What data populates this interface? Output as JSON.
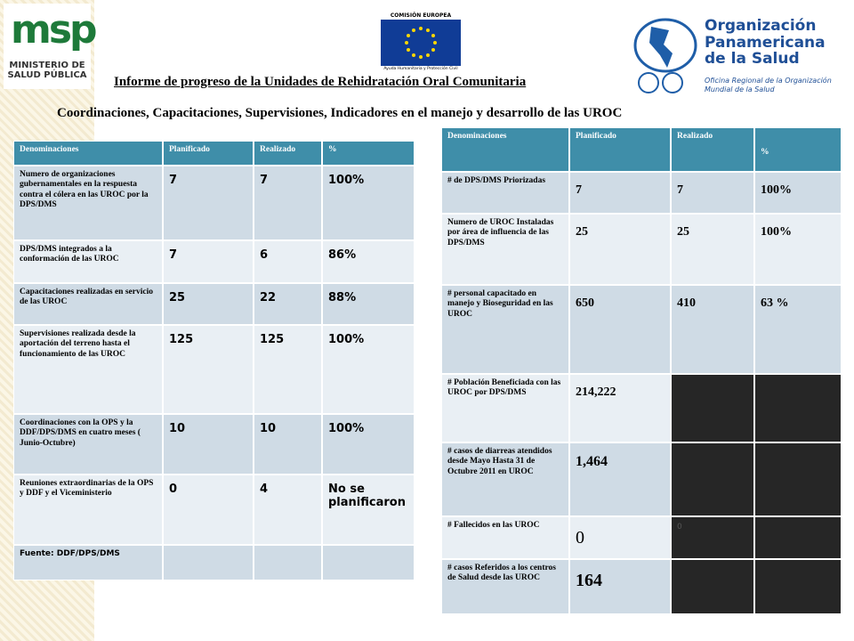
{
  "header": {
    "msp_logo": "msp",
    "msp_name": "MINISTERIO DE SALUD PÚBLICA",
    "eu_name": "COMISIÓN EUROPEA",
    "eu_subtitle": "Ayuda Humanitaria y Protección Civil",
    "ops_name": "Organización Panamericana de la Salud",
    "ops_subtitle": "Oficina Regional de la Organización Mundial de la Salud"
  },
  "title": "Informe de progreso de la Unidades de Rehidratación Oral Comunitaria",
  "subtitle": "Coordinaciones, Capacitaciones, Supervisiones, Indicadores en el manejo y desarrollo de las UROC",
  "table_left": {
    "header": [
      "Denominaciones",
      "Planificado",
      "Realizado",
      "%"
    ],
    "rows": [
      [
        "Numero de organizaciones gubernamentales en la respuesta contra el cólera en las UROC por la DPS/DMS",
        "7",
        "7",
        "100%"
      ],
      [
        "DPS/DMS integrados a la conformación de las UROC",
        "7",
        "6",
        "86%"
      ],
      [
        "Capacitaciones realizadas en servicio de las UROC",
        "25",
        "22",
        "88%"
      ],
      [
        "Supervisiones realizada desde la aportación del terreno hasta el funcionamiento de las UROC",
        "125",
        "125",
        "100%"
      ],
      [
        "Coordinaciones con la OPS y la DDF/DPS/DMS en cuatro meses ( Junio-Octubre)",
        "10",
        "10",
        "100%"
      ],
      [
        "Reuniones extraordinarias de la OPS y DDF y el Viceministerio",
        "0",
        "4",
        "No se planificaron"
      ]
    ],
    "source": "Fuente: DDF/DPS/DMS"
  },
  "table_right": {
    "header": [
      "Denominaciones",
      "Planificado",
      "Realizado",
      "%"
    ],
    "rows": [
      [
        "# de DPS/DMS Priorizadas",
        "7",
        "7",
        "100%"
      ],
      [
        "Numero de UROC Instaladas por área de influencia de las DPS/DMS",
        "25",
        "25",
        "100%"
      ],
      [
        "# personal capacitado en manejo y Bioseguridad en las UROC",
        "650",
        "410",
        "63 %"
      ],
      [
        "# Población Beneficiada con las UROC por DPS/DMS",
        "214,222",
        null,
        null
      ],
      [
        "# casos de diarreas atendidos desde Mayo Hasta 31 de Octubre 2011 en UROC",
        "1,464",
        null,
        null
      ],
      [
        "# Fallecidos en las UROC",
        "0",
        "0",
        null
      ],
      [
        "# casos Referidos a los centros de Salud desde las UROC",
        "164",
        null,
        null
      ]
    ]
  }
}
